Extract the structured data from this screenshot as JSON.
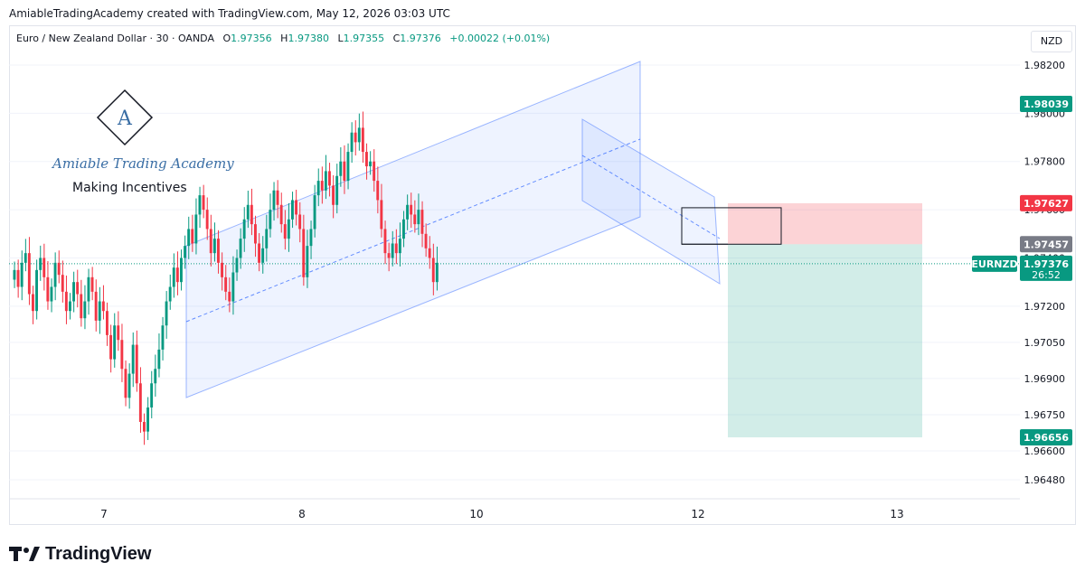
{
  "header": {
    "credit": "AmiableTradingAcademy created with TradingView.com, May 12, 2026 03:03 UTC"
  },
  "legend": {
    "symbol": "Euro / New Zealand Dollar · 30 · OANDA",
    "o_label": "O",
    "o": "1.97356",
    "h_label": "H",
    "h": "1.97380",
    "l_label": "L",
    "l": "1.97355",
    "c_label": "C",
    "c": "1.97376",
    "change": "+0.00022 (+0.01%)"
  },
  "currency": "NZD",
  "logo": {
    "brand": "Amiable Trading Academy",
    "tagline": "Making Incentives",
    "mark_letter": "A"
  },
  "footer": {
    "brand": "TradingView"
  },
  "colors": {
    "up": "#089981",
    "down": "#f23645",
    "channel": "#2962ff",
    "stop_zone": "#f23645",
    "target_zone": "#089981",
    "tag_gray": "#787b86"
  },
  "chart_data": {
    "type": "candlestick",
    "symbol": "EURNZD",
    "y_axis_ticks": [
      1.982,
      1.98,
      1.978,
      1.976,
      1.974,
      1.972,
      1.9705,
      1.969,
      1.9675,
      1.966,
      1.9648
    ],
    "y_axis_tick_labels": [
      "1.98200",
      "1.98000",
      "1.97800",
      "1.97600",
      "1.97400",
      "1.97200",
      "1.97050",
      "1.96900",
      "1.96750",
      "1.96600",
      "1.96480"
    ],
    "x_axis_ticks": [
      {
        "label": "7",
        "bar": 20
      },
      {
        "label": "8",
        "bar": 68
      },
      {
        "label": "10",
        "bar": 110
      },
      {
        "label": "12",
        "bar": 164
      },
      {
        "label": "13",
        "bar": 212
      }
    ],
    "price_tags": [
      {
        "label": "1.98039",
        "value": 1.98039,
        "color": "#089981"
      },
      {
        "label": "1.97627",
        "value": 1.97627,
        "color": "#f23645"
      },
      {
        "label": "1.97457",
        "value": 1.97457,
        "color": "#787b86"
      },
      {
        "label": "1.97376",
        "value": 1.97376,
        "color": "#089981",
        "symbol": "EURNZD",
        "countdown": "26:52"
      },
      {
        "label": "1.96656",
        "value": 1.96656,
        "color": "#089981"
      }
    ],
    "last_price": 1.97376,
    "position": {
      "direction": "short",
      "entry": 1.97457,
      "stop": 1.97627,
      "target": 1.96656
    },
    "closes": [
      1.9735,
      1.9728,
      1.9738,
      1.9742,
      1.9725,
      1.9718,
      1.9735,
      1.974,
      1.9732,
      1.9722,
      1.9728,
      1.9738,
      1.9733,
      1.9726,
      1.9718,
      1.9722,
      1.973,
      1.9725,
      1.9715,
      1.9722,
      1.9732,
      1.9726,
      1.9714,
      1.9722,
      1.9718,
      1.9708,
      1.9698,
      1.9712,
      1.9706,
      1.9694,
      1.9682,
      1.9692,
      1.9704,
      1.9688,
      1.9672,
      1.9668,
      1.9678,
      1.9688,
      1.9694,
      1.9702,
      1.9712,
      1.9722,
      1.9728,
      1.9736,
      1.973,
      1.974,
      1.9745,
      1.9752,
      1.9746,
      1.9758,
      1.9766,
      1.976,
      1.9752,
      1.9742,
      1.9748,
      1.9738,
      1.9732,
      1.9726,
      1.9722,
      1.9734,
      1.974,
      1.9748,
      1.9756,
      1.9762,
      1.9754,
      1.9746,
      1.9738,
      1.9744,
      1.9752,
      1.976,
      1.9768,
      1.9762,
      1.9754,
      1.9748,
      1.9756,
      1.9764,
      1.9758,
      1.9752,
      1.9732,
      1.9745,
      1.9752,
      1.9766,
      1.9772,
      1.9768,
      1.9776,
      1.977,
      1.9762,
      1.9774,
      1.978,
      1.9772,
      1.9784,
      1.9792,
      1.9788,
      1.9794,
      1.9784,
      1.9778,
      1.978,
      1.9772,
      1.9764,
      1.9752,
      1.9742,
      1.974,
      1.9746,
      1.9742,
      1.9748,
      1.9756,
      1.9762,
      1.9758,
      1.9754,
      1.976,
      1.975,
      1.9744,
      1.974,
      1.973,
      1.9738
    ]
  }
}
